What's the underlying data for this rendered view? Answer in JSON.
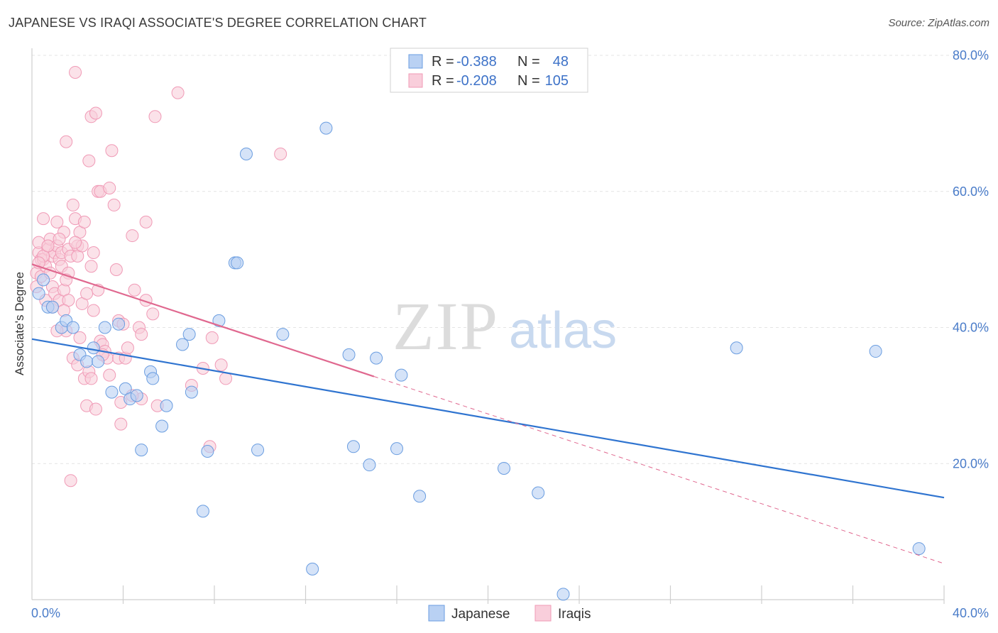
{
  "title": "JAPANESE VS IRAQI ASSOCIATE'S DEGREE CORRELATION CHART",
  "source": "Source: ZipAtlas.com",
  "watermark": {
    "zip": "ZIP",
    "atlas": "atlas"
  },
  "chart_data": {
    "type": "scatter",
    "ylabel": "Associate's Degree",
    "xlim": [
      0,
      40
    ],
    "ylim": [
      0,
      80
    ],
    "x_tick_labels": [
      {
        "value": 0,
        "label": "0.0%"
      },
      {
        "value": 40,
        "label": "40.0%"
      }
    ],
    "y_tick_labels": [
      {
        "value": 20,
        "label": "20.0%"
      },
      {
        "value": 40,
        "label": "40.0%"
      },
      {
        "value": 60,
        "label": "60.0%"
      },
      {
        "value": 80,
        "label": "80.0%"
      }
    ],
    "legend_stats": [
      {
        "r_label": "R = ",
        "r_value": "-0.388",
        "n_label": "N = ",
        "n_value": "48"
      },
      {
        "r_label": "R = ",
        "r_value": "-0.208",
        "n_label": "N = ",
        "n_value": "105"
      }
    ],
    "series": [
      {
        "name": "Japanese",
        "color": "#6a9de0",
        "fill": "#b9d1f3",
        "trend": {
          "x0": 0,
          "y0": 38.3,
          "x1": 40,
          "y1": 15.0,
          "color": "#2f74d0"
        },
        "points": [
          [
            0.3,
            45
          ],
          [
            0.5,
            47
          ],
          [
            0.7,
            43
          ],
          [
            0.9,
            43
          ],
          [
            1.3,
            40
          ],
          [
            1.5,
            41
          ],
          [
            1.8,
            40
          ],
          [
            2.1,
            36
          ],
          [
            2.4,
            35
          ],
          [
            2.7,
            37
          ],
          [
            2.9,
            35
          ],
          [
            3.2,
            40
          ],
          [
            3.5,
            30.5
          ],
          [
            3.8,
            40.5
          ],
          [
            4.1,
            31
          ],
          [
            4.3,
            29.5
          ],
          [
            4.6,
            30
          ],
          [
            4.8,
            22
          ],
          [
            5.2,
            33.5
          ],
          [
            5.3,
            32.5
          ],
          [
            5.7,
            25.5
          ],
          [
            5.9,
            28.5
          ],
          [
            6.6,
            37.5
          ],
          [
            6.9,
            39
          ],
          [
            7.0,
            30.5
          ],
          [
            7.5,
            13
          ],
          [
            7.7,
            21.8
          ],
          [
            8.2,
            41
          ],
          [
            8.9,
            49.5
          ],
          [
            9.0,
            49.5
          ],
          [
            9.4,
            65.5
          ],
          [
            9.9,
            22
          ],
          [
            11.0,
            39
          ],
          [
            12.3,
            4.5
          ],
          [
            12.9,
            69.3
          ],
          [
            13.9,
            36
          ],
          [
            14.1,
            22.5
          ],
          [
            14.8,
            19.8
          ],
          [
            15.1,
            35.5
          ],
          [
            16.0,
            22.2
          ],
          [
            16.2,
            33
          ],
          [
            17.0,
            15.2
          ],
          [
            20.7,
            19.3
          ],
          [
            22.2,
            15.7
          ],
          [
            23.3,
            0.8
          ],
          [
            30.9,
            37
          ],
          [
            37.0,
            36.5
          ],
          [
            38.9,
            7.5
          ]
        ]
      },
      {
        "name": "Iraqis",
        "color": "#f09ab6",
        "fill": "#f9cedb",
        "trend": {
          "x0": 0,
          "y0": 49.3,
          "x1": 15,
          "y1": 32.8,
          "color": "#e0688f"
        },
        "trend_dashed": {
          "x0": 15,
          "y0": 32.8,
          "x1": 40,
          "y1": 5.3
        },
        "points": [
          [
            0.2,
            48
          ],
          [
            0.2,
            46
          ],
          [
            0.3,
            51
          ],
          [
            0.3,
            52.5
          ],
          [
            0.4,
            50
          ],
          [
            0.4,
            47.5
          ],
          [
            0.5,
            56
          ],
          [
            0.5,
            50
          ],
          [
            0.6,
            49
          ],
          [
            0.6,
            44
          ],
          [
            0.7,
            52
          ],
          [
            0.7,
            51.5
          ],
          [
            0.8,
            53
          ],
          [
            0.8,
            48
          ],
          [
            0.9,
            50.5
          ],
          [
            0.9,
            46
          ],
          [
            1.0,
            45
          ],
          [
            1.0,
            51
          ],
          [
            1.1,
            55.5
          ],
          [
            1.1,
            52
          ],
          [
            1.2,
            44
          ],
          [
            1.2,
            50
          ],
          [
            1.3,
            49
          ],
          [
            1.3,
            51
          ],
          [
            1.4,
            45.5
          ],
          [
            1.4,
            54
          ],
          [
            1.5,
            67.3
          ],
          [
            1.5,
            39.5
          ],
          [
            1.6,
            51.5
          ],
          [
            1.6,
            48
          ],
          [
            1.7,
            50.5
          ],
          [
            1.7,
            17.5
          ],
          [
            1.8,
            35.5
          ],
          [
            1.8,
            58
          ],
          [
            1.9,
            56
          ],
          [
            1.9,
            77.5
          ],
          [
            2.0,
            52
          ],
          [
            2.0,
            50.5
          ],
          [
            2.1,
            38.5
          ],
          [
            2.1,
            54
          ],
          [
            2.2,
            52
          ],
          [
            2.2,
            43.5
          ],
          [
            2.3,
            55.5
          ],
          [
            2.3,
            32.5
          ],
          [
            2.4,
            28.5
          ],
          [
            2.4,
            45
          ],
          [
            2.5,
            64.5
          ],
          [
            2.5,
            33.5
          ],
          [
            2.6,
            71
          ],
          [
            2.6,
            32.5
          ],
          [
            2.7,
            51
          ],
          [
            2.7,
            42.5
          ],
          [
            2.8,
            71.5
          ],
          [
            2.8,
            28
          ],
          [
            2.9,
            60
          ],
          [
            2.9,
            45.5
          ],
          [
            3.0,
            38
          ],
          [
            3.0,
            60
          ],
          [
            3.1,
            37.5
          ],
          [
            3.2,
            36.5
          ],
          [
            3.3,
            35.5
          ],
          [
            3.4,
            60.5
          ],
          [
            3.4,
            33
          ],
          [
            3.5,
            66
          ],
          [
            3.6,
            58
          ],
          [
            3.7,
            48.5
          ],
          [
            3.8,
            41
          ],
          [
            3.8,
            35.5
          ],
          [
            3.9,
            29
          ],
          [
            3.9,
            25.8
          ],
          [
            4.0,
            40.5
          ],
          [
            4.1,
            35.5
          ],
          [
            4.2,
            37
          ],
          [
            4.4,
            53.5
          ],
          [
            4.5,
            45.5
          ],
          [
            4.7,
            40
          ],
          [
            4.8,
            39
          ],
          [
            4.8,
            29.5
          ],
          [
            5.0,
            55.5
          ],
          [
            5.0,
            44
          ],
          [
            5.3,
            42
          ],
          [
            5.4,
            71
          ],
          [
            5.5,
            28.5
          ],
          [
            6.4,
            74.5
          ],
          [
            7.0,
            31.5
          ],
          [
            7.5,
            34
          ],
          [
            7.8,
            22.5
          ],
          [
            7.9,
            38.5
          ],
          [
            8.3,
            34.5
          ],
          [
            8.5,
            32.5
          ],
          [
            10.9,
            65.5
          ],
          [
            1.1,
            39.5
          ],
          [
            2.0,
            34.5
          ],
          [
            0.9,
            43
          ],
          [
            1.5,
            47
          ],
          [
            1.9,
            52.5
          ],
          [
            0.5,
            50.5
          ],
          [
            1.2,
            53
          ],
          [
            0.7,
            52
          ],
          [
            2.6,
            49
          ],
          [
            3.1,
            36
          ],
          [
            1.6,
            44
          ],
          [
            4.4,
            30
          ],
          [
            1.4,
            42.5
          ],
          [
            0.3,
            49.5
          ]
        ]
      }
    ]
  }
}
